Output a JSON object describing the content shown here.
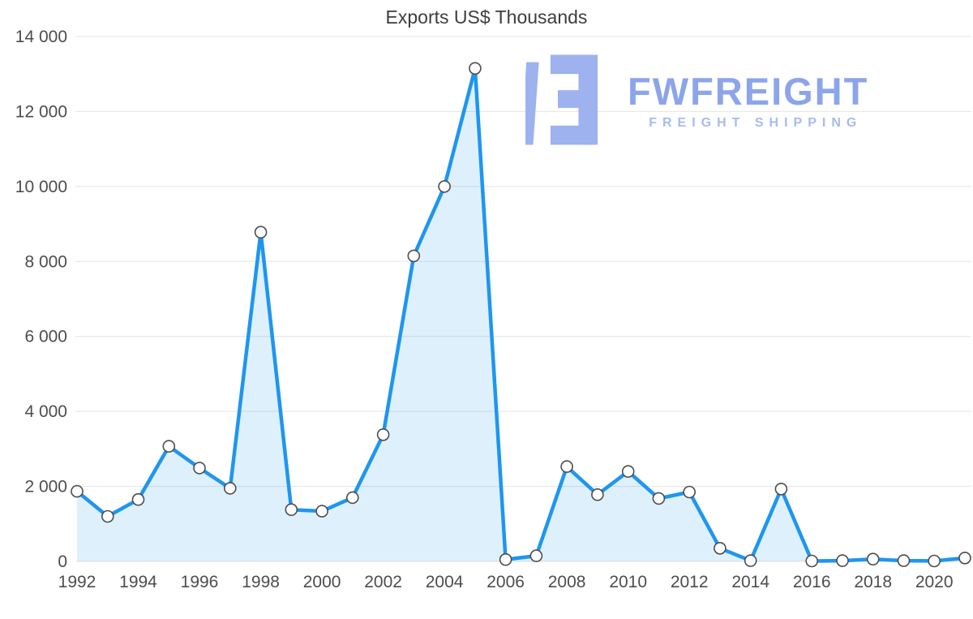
{
  "chart_data": {
    "type": "area",
    "title": "Exports US$ Thousands",
    "series_name": "Exports US$ Thousands",
    "x": [
      1992,
      1993,
      1994,
      1995,
      1996,
      1997,
      1998,
      1999,
      2000,
      2001,
      2002,
      2003,
      2004,
      2005,
      2006,
      2007,
      2008,
      2009,
      2010,
      2011,
      2012,
      2013,
      2014,
      2015,
      2016,
      2017,
      2018,
      2019,
      2020,
      2021
    ],
    "values": [
      1870,
      1200,
      1650,
      3070,
      2490,
      1950,
      8780,
      1380,
      1340,
      1700,
      3380,
      8150,
      10000,
      13150,
      50,
      150,
      2530,
      1780,
      2400,
      1680,
      1850,
      350,
      20,
      1930,
      10,
      20,
      60,
      20,
      10,
      90
    ],
    "xticks": [
      1992,
      1994,
      1996,
      1998,
      2000,
      2002,
      2004,
      2006,
      2008,
      2010,
      2012,
      2014,
      2016,
      2018,
      2020
    ],
    "yticks": [
      0,
      2000,
      4000,
      6000,
      8000,
      10000,
      12000,
      14000
    ],
    "ytick_labels": [
      "0",
      "2 000",
      "4 000",
      "6 000",
      "8 000",
      "10 000",
      "12 000",
      "14 000"
    ],
    "ylim": [
      0,
      14000
    ],
    "xlim": [
      1992,
      2021
    ],
    "grid": true,
    "legend": false,
    "line_color": "#1e96f0",
    "fill_color": "rgba(30,150,240,0.14)",
    "marker_fill": "#ffffff",
    "marker_stroke": "#4d4d4d",
    "grid_color": "#e4e4e4",
    "tick_color": "#4d4d4d"
  },
  "watermark": {
    "brand": "FWFREIGHT",
    "tagline": "FREIGHT SHIPPING",
    "brand_color": "#8ca5ea",
    "icon_color": "#9db2ee"
  }
}
